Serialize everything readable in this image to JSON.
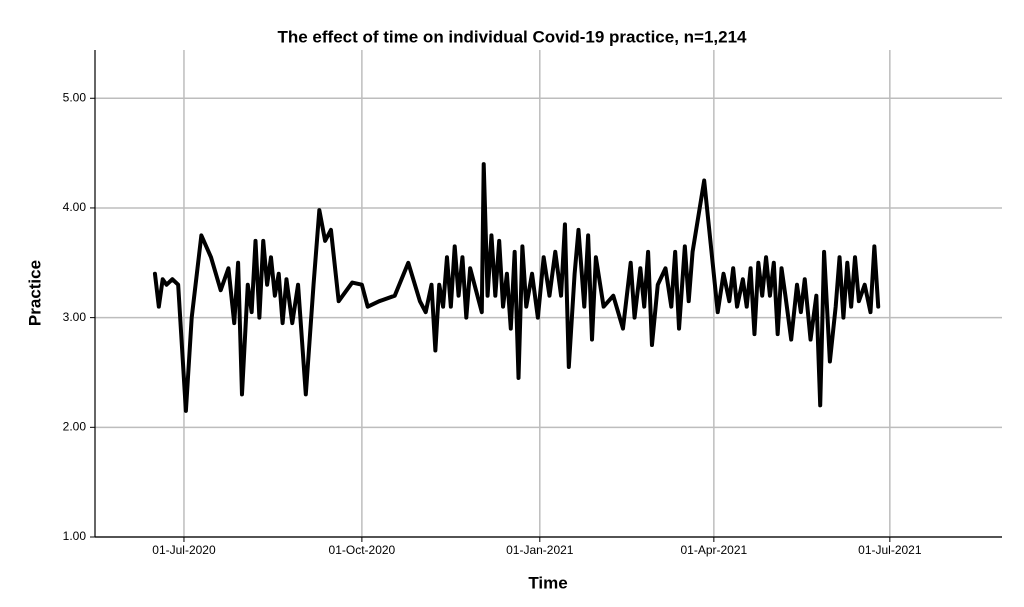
{
  "chart_data": {
    "type": "line",
    "title": "The effect of time on individual Covid-19 practice, n=1,214",
    "x_label": "Time",
    "y_label": "Practice",
    "x": [
      "2020-06-16",
      "2020-06-18",
      "2020-06-20",
      "2020-06-22",
      "2020-06-25",
      "2020-06-28",
      "2020-07-02",
      "2020-07-05",
      "2020-07-10",
      "2020-07-15",
      "2020-07-20",
      "2020-07-24",
      "2020-07-27",
      "2020-07-29",
      "2020-07-31",
      "2020-08-03",
      "2020-08-05",
      "2020-08-07",
      "2020-08-09",
      "2020-08-11",
      "2020-08-13",
      "2020-08-15",
      "2020-08-17",
      "2020-08-19",
      "2020-08-21",
      "2020-08-23",
      "2020-08-26",
      "2020-08-29",
      "2020-09-02",
      "2020-09-06",
      "2020-09-09",
      "2020-09-12",
      "2020-09-15",
      "2020-09-19",
      "2020-09-26",
      "2020-10-01",
      "2020-10-04",
      "2020-10-10",
      "2020-10-18",
      "2020-10-25",
      "2020-10-31",
      "2020-11-03",
      "2020-11-06",
      "2020-11-08",
      "2020-11-10",
      "2020-11-12",
      "2020-11-14",
      "2020-11-16",
      "2020-11-18",
      "2020-11-20",
      "2020-11-22",
      "2020-11-24",
      "2020-11-26",
      "2020-11-29",
      "2020-12-02",
      "2020-12-03",
      "2020-12-05",
      "2020-12-07",
      "2020-12-09",
      "2020-12-11",
      "2020-12-13",
      "2020-12-15",
      "2020-12-17",
      "2020-12-19",
      "2020-12-21",
      "2020-12-23",
      "2020-12-25",
      "2020-12-28",
      "2020-12-31",
      "2021-01-03",
      "2021-01-06",
      "2021-01-09",
      "2021-01-12",
      "2021-01-14",
      "2021-01-16",
      "2021-01-19",
      "2021-01-21",
      "2021-01-24",
      "2021-01-26",
      "2021-01-28",
      "2021-01-30",
      "2021-02-03",
      "2021-02-08",
      "2021-02-13",
      "2021-02-17",
      "2021-02-19",
      "2021-02-22",
      "2021-02-24",
      "2021-02-26",
      "2021-02-28",
      "2021-03-03",
      "2021-03-07",
      "2021-03-10",
      "2021-03-12",
      "2021-03-14",
      "2021-03-17",
      "2021-03-19",
      "2021-03-21",
      "2021-03-27",
      "2021-04-03",
      "2021-04-06",
      "2021-04-09",
      "2021-04-11",
      "2021-04-13",
      "2021-04-16",
      "2021-04-18",
      "2021-04-20",
      "2021-04-22",
      "2021-04-24",
      "2021-04-26",
      "2021-04-28",
      "2021-04-30",
      "2021-05-02",
      "2021-05-04",
      "2021-05-06",
      "2021-05-08",
      "2021-05-11",
      "2021-05-14",
      "2021-05-16",
      "2021-05-18",
      "2021-05-21",
      "2021-05-24",
      "2021-05-26",
      "2021-05-28",
      "2021-05-31",
      "2021-06-03",
      "2021-06-05",
      "2021-06-07",
      "2021-06-09",
      "2021-06-11",
      "2021-06-13",
      "2021-06-15",
      "2021-06-18",
      "2021-06-21",
      "2021-06-23",
      "2021-06-25"
    ],
    "series": [
      {
        "name": "Practice",
        "color": "#000000",
        "values": [
          3.4,
          3.1,
          3.35,
          3.3,
          3.35,
          3.3,
          2.15,
          3.0,
          3.75,
          3.55,
          3.25,
          3.45,
          2.95,
          3.5,
          2.3,
          3.3,
          3.05,
          3.7,
          3.0,
          3.7,
          3.3,
          3.55,
          3.2,
          3.4,
          2.95,
          3.35,
          2.95,
          3.3,
          2.3,
          3.3,
          3.98,
          3.7,
          3.8,
          3.15,
          3.32,
          3.3,
          3.1,
          3.15,
          3.2,
          3.5,
          3.15,
          3.05,
          3.3,
          2.7,
          3.3,
          3.1,
          3.55,
          3.1,
          3.65,
          3.2,
          3.55,
          3.0,
          3.45,
          3.25,
          3.05,
          4.4,
          3.2,
          3.75,
          3.2,
          3.7,
          3.1,
          3.4,
          2.9,
          3.6,
          2.45,
          3.65,
          3.1,
          3.4,
          3.0,
          3.55,
          3.2,
          3.6,
          3.2,
          3.85,
          2.55,
          3.4,
          3.8,
          3.1,
          3.75,
          2.8,
          3.55,
          3.1,
          3.2,
          2.9,
          3.5,
          3.0,
          3.45,
          3.1,
          3.6,
          2.75,
          3.3,
          3.45,
          3.1,
          3.6,
          2.9,
          3.65,
          3.15,
          3.6,
          4.25,
          3.05,
          3.4,
          3.15,
          3.45,
          3.1,
          3.35,
          3.1,
          3.45,
          2.85,
          3.5,
          3.2,
          3.55,
          3.2,
          3.5,
          2.85,
          3.45,
          3.2,
          2.8,
          3.3,
          3.05,
          3.35,
          2.8,
          3.2,
          2.2,
          3.6,
          2.6,
          3.1,
          3.55,
          3.0,
          3.5,
          3.1,
          3.55,
          3.15,
          3.3,
          3.05,
          3.65,
          3.1
        ]
      }
    ],
    "xlim": [
      "2020-05-16",
      "2021-08-28"
    ],
    "xticks": [
      {
        "value": "2020-07-01",
        "label": "01-Jul-2020"
      },
      {
        "value": "2020-10-01",
        "label": "01-Oct-2020"
      },
      {
        "value": "2021-01-01",
        "label": "01-Jan-2021"
      },
      {
        "value": "2021-04-01",
        "label": "01-Apr-2021"
      },
      {
        "value": "2021-07-01",
        "label": "01-Jul-2021"
      }
    ],
    "ylim": [
      1,
      5.44
    ],
    "yticks": [
      {
        "value": 1,
        "label": "1.00"
      },
      {
        "value": 2,
        "label": "2.00"
      },
      {
        "value": 3,
        "label": "3.00"
      },
      {
        "value": 4,
        "label": "4.00"
      },
      {
        "value": 5,
        "label": "5.00"
      }
    ],
    "grid": true
  }
}
